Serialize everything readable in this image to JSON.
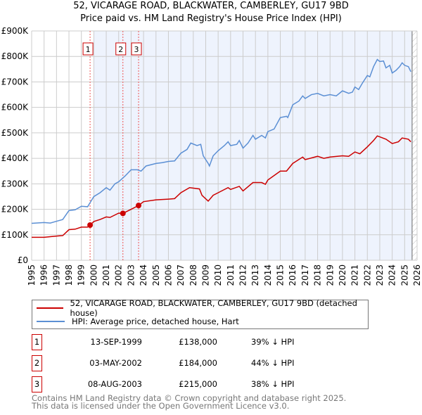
{
  "title": "52, VICARAGE ROAD, BLACKWATER, CAMBERLEY, GU17 9BD",
  "subtitle": "Price paid vs. HM Land Registry's House Price Index (HPI)",
  "chart_data": {
    "type": "line",
    "ylim": [
      0,
      900000
    ],
    "xlim": [
      1995,
      2026
    ],
    "yticks": [
      {
        "v": 0,
        "label": "£0"
      },
      {
        "v": 100000,
        "label": "£100K"
      },
      {
        "v": 200000,
        "label": "£200K"
      },
      {
        "v": 300000,
        "label": "£300K"
      },
      {
        "v": 400000,
        "label": "£400K"
      },
      {
        "v": 500000,
        "label": "£500K"
      },
      {
        "v": 600000,
        "label": "£600K"
      },
      {
        "v": 700000,
        "label": "£700K"
      },
      {
        "v": 800000,
        "label": "£800K"
      },
      {
        "v": 900000,
        "label": "£900K"
      }
    ],
    "xticks": [
      "1995",
      "1996",
      "1997",
      "1998",
      "1999",
      "2000",
      "2001",
      "2002",
      "2003",
      "2004",
      "2005",
      "2006",
      "2007",
      "2008",
      "2009",
      "2010",
      "2011",
      "2012",
      "2013",
      "2014",
      "2015",
      "2016",
      "2017",
      "2018",
      "2019",
      "2020",
      "2021",
      "2022",
      "2023",
      "2024",
      "2025",
      "2026"
    ],
    "shaded_range": [
      2000,
      2025.6
    ],
    "series": [
      {
        "name": "HPI: Average price, detached house, Hart",
        "color": "#5b8fd4",
        "x": [
          1995,
          1996,
          1996.5,
          1997,
          1997.5,
          1998,
          1998.5,
          1999,
          1999.5,
          2000,
          2000.5,
          2001,
          2001.3,
          2001.7,
          2002,
          2002.5,
          2003,
          2003.5,
          2003.8,
          2004.2,
          2005,
          2005.5,
          2006,
          2006.5,
          2007,
          2007.5,
          2007.8,
          2008.3,
          2008.6,
          2008.8,
          2009.2,
          2009.3,
          2009.6,
          2010,
          2010.5,
          2010.8,
          2011,
          2011.5,
          2011.7,
          2012,
          2012.4,
          2012.8,
          2013,
          2013.5,
          2013.8,
          2014,
          2014.5,
          2015,
          2015.5,
          2015.6,
          2016,
          2016.5,
          2016.8,
          2017,
          2017.5,
          2018,
          2018.5,
          2019,
          2019.5,
          2020,
          2020.5,
          2020.8,
          2021,
          2021.3,
          2021.6,
          2022,
          2022.2,
          2022.5,
          2022.8,
          2023,
          2023.3,
          2023.5,
          2023.8,
          2024,
          2024.3,
          2024.6,
          2024.8,
          2025,
          2025.3,
          2025.5
        ],
        "y": [
          145000,
          148000,
          146000,
          153000,
          160000,
          195000,
          198000,
          212000,
          210000,
          250000,
          265000,
          285000,
          275000,
          300000,
          308000,
          330000,
          355000,
          355000,
          350000,
          370000,
          380000,
          383000,
          388000,
          390000,
          420000,
          435000,
          460000,
          450000,
          455000,
          410000,
          380000,
          370000,
          410000,
          430000,
          450000,
          465000,
          450000,
          455000,
          470000,
          440000,
          460000,
          490000,
          475000,
          490000,
          480000,
          505000,
          515000,
          560000,
          565000,
          560000,
          610000,
          625000,
          645000,
          635000,
          650000,
          655000,
          645000,
          650000,
          645000,
          665000,
          655000,
          660000,
          680000,
          670000,
          695000,
          725000,
          720000,
          760000,
          788000,
          780000,
          782000,
          755000,
          765000,
          735000,
          745000,
          760000,
          775000,
          765000,
          760000,
          740000
        ]
      },
      {
        "name": "52, VICARAGE ROAD, BLACKWATER, CAMBERLEY, GU17 9BD (detached house)",
        "color": "#cc0000",
        "x": [
          1995,
          1996,
          1997,
          1997.5,
          1998,
          1998.5,
          1999,
          1999.5,
          1999.7,
          2000,
          2000.5,
          2001,
          2001.3,
          2002,
          2002.34,
          2003,
          2003.6,
          2004,
          2005,
          2006,
          2006.5,
          2007,
          2007.7,
          2008.5,
          2008.7,
          2009.2,
          2009.6,
          2010,
          2010.8,
          2011,
          2011.7,
          2012,
          2012.8,
          2013.5,
          2013.8,
          2014,
          2015,
          2015.5,
          2016,
          2016.8,
          2017,
          2018,
          2018.5,
          2019,
          2020,
          2020.5,
          2021,
          2021.4,
          2022,
          2022.5,
          2022.8,
          2023.5,
          2024,
          2024.5,
          2024.8,
          2025.3,
          2025.5
        ],
        "y": [
          90000,
          90000,
          95000,
          97000,
          120000,
          122000,
          130000,
          130000,
          138000,
          152000,
          160000,
          170000,
          168000,
          185000,
          184000,
          200000,
          215000,
          230000,
          237000,
          240000,
          242000,
          265000,
          285000,
          280000,
          255000,
          232000,
          255000,
          265000,
          285000,
          278000,
          290000,
          272000,
          305000,
          305000,
          298000,
          315000,
          350000,
          350000,
          380000,
          405000,
          395000,
          408000,
          400000,
          405000,
          410000,
          408000,
          425000,
          418000,
          445000,
          470000,
          488000,
          475000,
          458000,
          465000,
          480000,
          475000,
          465000
        ]
      }
    ],
    "sales": [
      {
        "id": "1",
        "date": "13-SEP-1999",
        "x": 1999.7,
        "price": "£138,000",
        "value": 138000,
        "hpi": "39% ↓ HPI"
      },
      {
        "id": "2",
        "date": "03-MAY-2002",
        "x": 2002.34,
        "price": "£184,000",
        "value": 184000,
        "hpi": "44% ↓ HPI"
      },
      {
        "id": "3",
        "date": "08-AUG-2003",
        "x": 2003.6,
        "price": "£215,000",
        "value": 215000,
        "hpi": "38% ↓ HPI"
      }
    ]
  },
  "legend": {
    "red": "52, VICARAGE ROAD, BLACKWATER, CAMBERLEY, GU17 9BD (detached house)",
    "blue": "HPI: Average price, detached house, Hart"
  },
  "footer": {
    "line1": "Contains HM Land Registry data © Crown copyright and database right 2025.",
    "line2": "This data is licensed under the Open Government Licence v3.0."
  }
}
